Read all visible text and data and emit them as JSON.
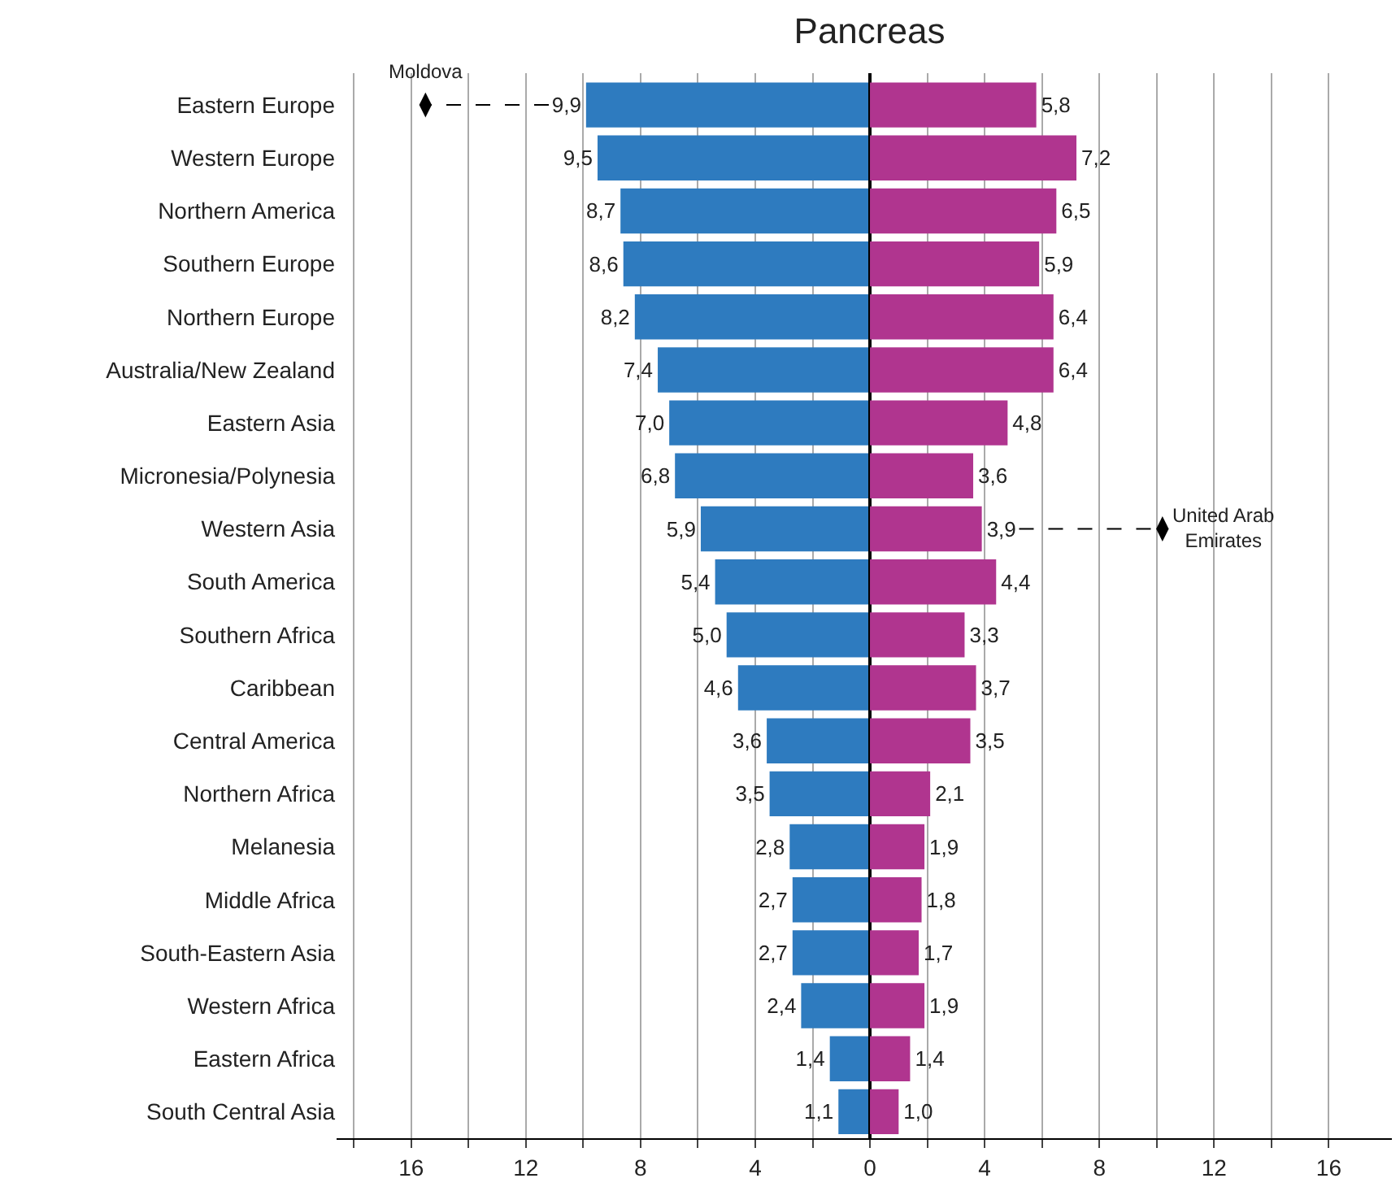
{
  "chart_data": [
    {
      "type": "bar",
      "orientation": "horizontal",
      "title": "Pancreas",
      "categories": [
        "Eastern Europe",
        "Western Europe",
        "Northern America",
        "Southern Europe",
        "Northern Europe",
        "Australia/New Zealand",
        "Eastern Asia",
        "Micronesia/Polynesia",
        "Western Asia",
        "South America",
        "Southern Africa",
        "Caribbean",
        "Central America",
        "Northern Africa",
        "Melanesia",
        "Middle Africa",
        "South-Eastern Asia",
        "Western Africa",
        "Eastern Africa",
        "South Central Asia"
      ],
      "series": [
        {
          "color": "#2e7bbf",
          "values": [
            9.9,
            9.5,
            8.7,
            8.6,
            8.2,
            7.4,
            7.0,
            6.8,
            5.9,
            5.4,
            5.0,
            4.6,
            3.6,
            3.5,
            2.8,
            2.7,
            2.7,
            2.4,
            1.4,
            1.1
          ],
          "value_labels": [
            "9,9",
            "9,5",
            "8,7",
            "8,6",
            "8,2",
            "7,4",
            "7,0",
            "6,8",
            "5,9",
            "5,4",
            "5,0",
            "4,6",
            "3,6",
            "3,5",
            "2,8",
            "2,7",
            "2,7",
            "2,4",
            "1,4",
            "1,1"
          ]
        },
        {
          "type": "scatter",
          "color": "#000000",
          "values": [
            15.5,
            null,
            null,
            null,
            null,
            null,
            null,
            null,
            null,
            null,
            null,
            null,
            null,
            null,
            null,
            null,
            null,
            null,
            null,
            null
          ]
        }
      ],
      "xlim": [
        18.6,
        0
      ],
      "xticks": [
        {
          "value": 18,
          "label": null
        },
        16,
        {
          "value": 14,
          "label": null
        },
        12,
        {
          "value": 10,
          "label": null
        },
        8,
        {
          "value": 6,
          "label": null
        },
        4,
        {
          "value": 2,
          "label": null
        },
        0
      ],
      "grid": "x",
      "annotations": [
        {
          "text": "Moldova",
          "x": 15.5,
          "y": "Eastern Europe"
        }
      ]
    },
    {
      "type": "bar",
      "orientation": "horizontal",
      "categories": [
        "Eastern Europe",
        "Western Europe",
        "Northern America",
        "Southern Europe",
        "Northern Europe",
        "Australia/New Zealand",
        "Eastern Asia",
        "Micronesia/Polynesia",
        "Western Asia",
        "South America",
        "Southern Africa",
        "Caribbean",
        "Central America",
        "Northern Africa",
        "Melanesia",
        "Middle Africa",
        "South-Eastern Asia",
        "Western Africa",
        "Eastern Africa",
        "South Central Asia"
      ],
      "series": [
        {
          "color": "#b0358f",
          "values": [
            5.8,
            7.2,
            6.5,
            5.9,
            6.4,
            6.4,
            4.8,
            3.6,
            3.9,
            4.4,
            3.3,
            3.7,
            3.5,
            2.1,
            1.9,
            1.8,
            1.7,
            1.9,
            1.4,
            1.0
          ],
          "value_labels": [
            "5,8",
            "7,2",
            "6,5",
            "5,9",
            "6,4",
            "6,4",
            "4,8",
            "3,6",
            "3,9",
            "4,4",
            "3,3",
            "3,7",
            "3,5",
            "2,1",
            "1,9",
            "1,8",
            "1,7",
            "1,9",
            "1,4",
            "1,0"
          ]
        },
        {
          "type": "scatter",
          "color": "#000000",
          "values": [
            null,
            null,
            null,
            null,
            null,
            null,
            null,
            null,
            10.2,
            null,
            null,
            null,
            null,
            null,
            null,
            null,
            null,
            null,
            null,
            null
          ]
        }
      ],
      "xlim": [
        0,
        18.2
      ],
      "xticks": [
        {
          "value": 2,
          "label": null
        },
        4,
        {
          "value": 6,
          "label": null
        },
        8,
        {
          "value": 10,
          "label": null
        },
        12,
        {
          "value": 14,
          "label": null
        },
        16
      ],
      "grid": "x",
      "tick_labels": "x",
      "annotations": [
        {
          "text": "United Arab\nEmirates",
          "x": 10.2,
          "y": "Western Asia"
        }
      ]
    }
  ]
}
